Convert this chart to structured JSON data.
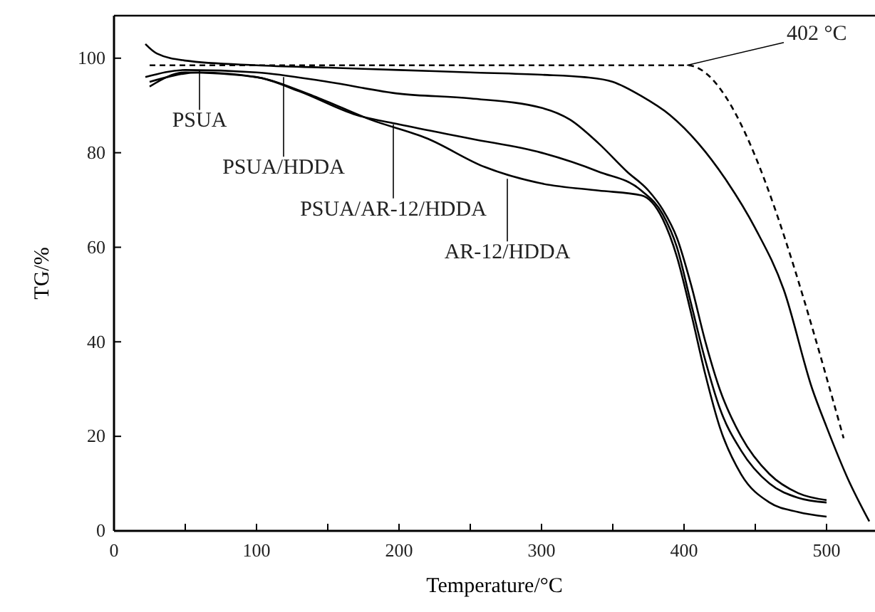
{
  "chart_data": {
    "type": "line",
    "xlabel": "Temperature/°C",
    "ylabel": "TG/%",
    "xlim": [
      0,
      534
    ],
    "ylim": [
      0,
      109
    ],
    "xticks": [
      0,
      {
        "value": 50,
        "label": null
      },
      100,
      {
        "value": 150,
        "label": null
      },
      200,
      {
        "value": 250,
        "label": null
      },
      300,
      {
        "value": 350,
        "label": null
      },
      400,
      {
        "value": 450,
        "label": null
      },
      500
    ],
    "yticks": [
      0,
      20,
      40,
      60,
      80,
      100
    ],
    "grid": false,
    "marker": "none",
    "line_style": "solid",
    "series": [
      {
        "color": "#000000",
        "x": [
          22,
          30,
          50,
          100,
          150,
          200,
          250,
          300,
          330,
          350,
          370,
          390,
          410,
          430,
          450,
          470,
          490,
          500,
          515,
          530
        ],
        "values": [
          103,
          101,
          99.5,
          98.5,
          98,
          97.5,
          97,
          96.5,
          96,
          95,
          92,
          88,
          82,
          74,
          64,
          51,
          30,
          22,
          11,
          2
        ]
      },
      {
        "color": "#000000",
        "x": [
          22,
          50,
          100,
          150,
          200,
          250,
          300,
          320,
          340,
          360,
          375,
          385,
          395,
          405,
          415,
          425,
          440,
          460,
          480,
          500
        ],
        "values": [
          96,
          97.5,
          97,
          95,
          92.5,
          91.5,
          89.5,
          87,
          82,
          76,
          72,
          68,
          62,
          52,
          40,
          30,
          20,
          12,
          8,
          6.5
        ]
      },
      {
        "color": "#000000",
        "x": [
          25,
          50,
          100,
          130,
          170,
          200,
          250,
          300,
          340,
          370,
          385,
          395,
          405,
          415,
          425,
          440,
          460,
          480,
          500
        ],
        "values": [
          94,
          97,
          96,
          93,
          88,
          86,
          83,
          80,
          76,
          72,
          67,
          60,
          48,
          36,
          26,
          17,
          10,
          7,
          6
        ]
      },
      {
        "color": "#000000",
        "x": [
          25,
          60,
          100,
          140,
          180,
          220,
          260,
          300,
          340,
          370,
          385,
          395,
          405,
          415,
          425,
          440,
          460,
          480,
          500
        ],
        "values": [
          95,
          97,
          96,
          92,
          87,
          83,
          77,
          73.5,
          72,
          71,
          66,
          58,
          46,
          33,
          22,
          12,
          6,
          4,
          3
        ]
      },
      {
        "color": "#000000",
        "line_style": "dashed",
        "x": [
          25,
          402,
          512
        ],
        "values": [
          98.5,
          98.5,
          19.6
        ]
      }
    ],
    "annotations": [
      {
        "text": "402 °C",
        "x": 402,
        "y": 98.5
      },
      {
        "text": "PSUA",
        "x": 60,
        "y": 97.5
      },
      {
        "text": "PSUA/HDDA",
        "x": 119,
        "y": 96
      },
      {
        "text": "PSUA/AR-12/HDDA",
        "x": 196,
        "y": 86
      },
      {
        "text": "AR-12/HDDA",
        "x": 276,
        "y": 74.5
      }
    ]
  }
}
